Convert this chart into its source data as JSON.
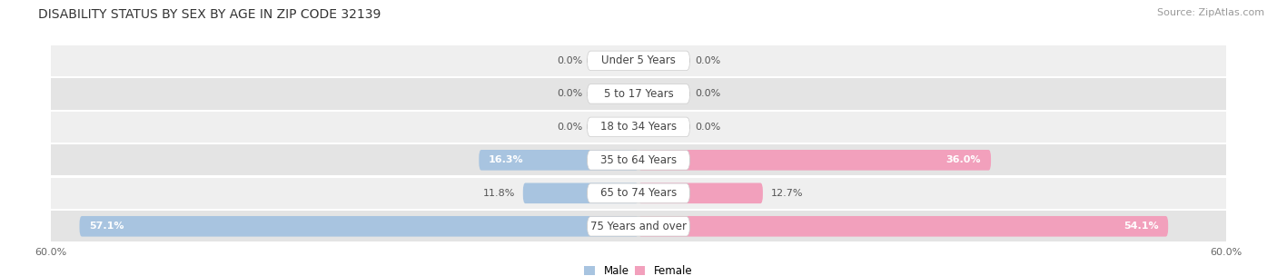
{
  "title": "DISABILITY STATUS BY SEX BY AGE IN ZIP CODE 32139",
  "source": "Source: ZipAtlas.com",
  "categories": [
    "Under 5 Years",
    "5 to 17 Years",
    "18 to 34 Years",
    "35 to 64 Years",
    "65 to 74 Years",
    "75 Years and over"
  ],
  "male_values": [
    0.0,
    0.0,
    0.0,
    16.3,
    11.8,
    57.1
  ],
  "female_values": [
    0.0,
    0.0,
    0.0,
    36.0,
    12.7,
    54.1
  ],
  "axis_max": 60.0,
  "male_color": "#a8c4e0",
  "female_color": "#f2a0bc",
  "row_bg_even": "#efefef",
  "row_bg_odd": "#e4e4e4",
  "title_fontsize": 10,
  "source_fontsize": 8,
  "tick_fontsize": 8,
  "label_fontsize": 8,
  "category_fontsize": 8.5
}
